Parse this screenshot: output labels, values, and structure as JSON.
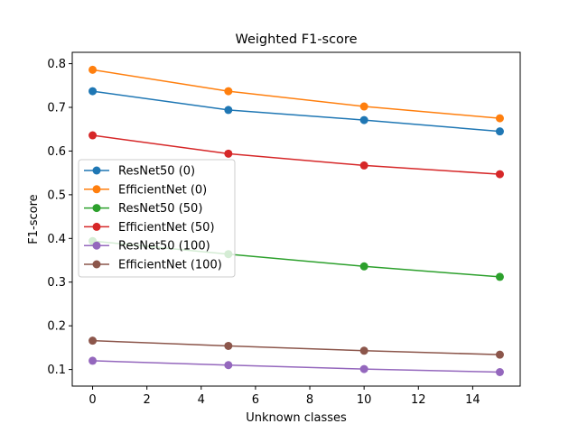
{
  "chart_data": {
    "type": "line",
    "title": "Weighted F1-score",
    "xlabel": "Unknown classes",
    "ylabel": "F1-score",
    "x": [
      0,
      5,
      10,
      15
    ],
    "xlim": [
      -0.75,
      15.75
    ],
    "ylim": [
      0.062,
      0.826
    ],
    "xticks": [
      0,
      2,
      4,
      6,
      8,
      10,
      12,
      14
    ],
    "yticks": [
      0.1,
      0.2,
      0.3,
      0.4,
      0.5,
      0.6,
      0.7,
      0.8
    ],
    "grid": false,
    "legend_position": "center-left",
    "series": [
      {
        "name": "ResNet50 (0)",
        "color": "#1f77b4",
        "values": [
          0.737,
          0.694,
          0.671,
          0.645
        ]
      },
      {
        "name": "EfficientNet (0)",
        "color": "#ff7f0e",
        "values": [
          0.786,
          0.737,
          0.702,
          0.675
        ]
      },
      {
        "name": "ResNet50 (50)",
        "color": "#2ca02c",
        "values": [
          0.394,
          0.364,
          0.336,
          0.312
        ]
      },
      {
        "name": "EfficientNet (50)",
        "color": "#d62728",
        "values": [
          0.636,
          0.594,
          0.567,
          0.547
        ]
      },
      {
        "name": "ResNet50 (100)",
        "color": "#9467bd",
        "values": [
          0.12,
          0.11,
          0.101,
          0.094
        ]
      },
      {
        "name": "EfficientNet (100)",
        "color": "#8c564b",
        "values": [
          0.166,
          0.154,
          0.143,
          0.134
        ]
      }
    ]
  }
}
